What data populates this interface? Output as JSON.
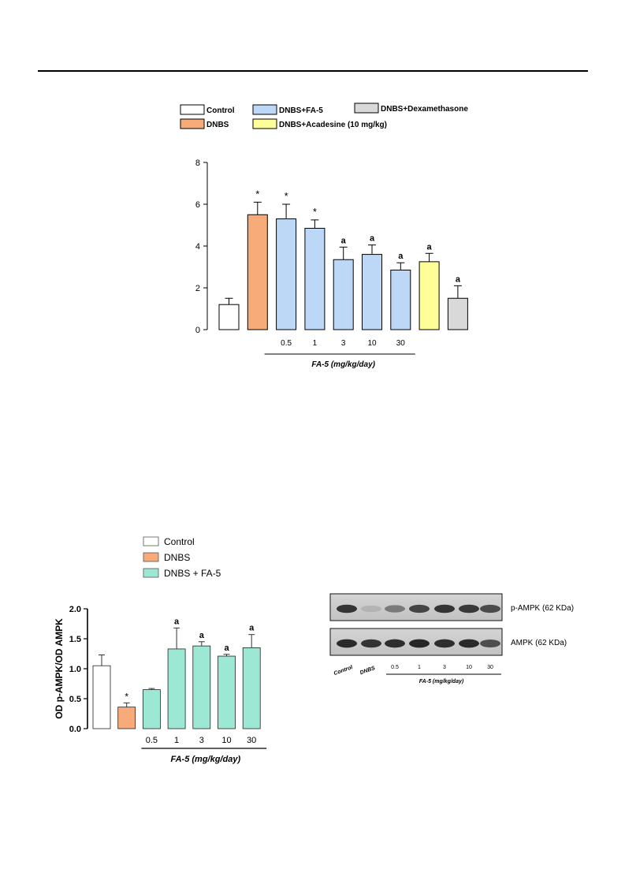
{
  "chart_data": [
    {
      "type": "bar",
      "ylim": [
        0,
        8
      ],
      "yticks": [
        "0",
        "2",
        "4",
        "6",
        "8"
      ],
      "bars": [
        {
          "value": 1.2,
          "error": 0.3,
          "color": "#ffffff",
          "mark": "",
          "label": ""
        },
        {
          "value": 5.5,
          "error": 0.6,
          "color": "#f6ab78",
          "mark": "*",
          "label": ""
        },
        {
          "value": 5.3,
          "error": 0.7,
          "color": "#bcd8f6",
          "mark": "*",
          "label": "0.5"
        },
        {
          "value": 4.85,
          "error": 0.4,
          "color": "#bcd8f6",
          "mark": "*",
          "label": "1"
        },
        {
          "value": 3.35,
          "error": 0.6,
          "color": "#bcd8f6",
          "mark": "a",
          "label": "3"
        },
        {
          "value": 3.6,
          "error": 0.45,
          "color": "#bcd8f6",
          "mark": "a",
          "label": "10"
        },
        {
          "value": 2.85,
          "error": 0.35,
          "color": "#bcd8f6",
          "mark": "a",
          "label": "30"
        },
        {
          "value": 3.25,
          "error": 0.4,
          "color": "#fefe99",
          "mark": "a",
          "label": ""
        },
        {
          "value": 1.5,
          "error": 0.6,
          "color": "#d9d9d9",
          "mark": "a",
          "label": ""
        }
      ],
      "group_label": "FA-5 (mg/kg/day)",
      "legend": [
        {
          "name": "Control",
          "color": "#ffffff"
        },
        {
          "name": "DNBS+FA-5",
          "color": "#bcd8f6"
        },
        {
          "name": "DNBS+Dexamethasone",
          "color": "#d9d9d9"
        },
        {
          "name": "DNBS",
          "color": "#f6ab78"
        },
        {
          "name": "DNBS+Acadesine (10 mg/kg)",
          "color": "#fefe99"
        }
      ]
    },
    {
      "type": "bar",
      "ylabel": "OD p-AMPK/OD AMPK",
      "ylim": [
        0,
        2
      ],
      "yticks": [
        "0.0",
        "0.5",
        "1.0",
        "1.5",
        "2.0"
      ],
      "bars": [
        {
          "value": 1.05,
          "error": 0.18,
          "color": "#ffffff",
          "mark": "",
          "label": ""
        },
        {
          "value": 0.36,
          "error": 0.07,
          "color": "#f6ab78",
          "mark": "*",
          "label": ""
        },
        {
          "value": 0.65,
          "error": 0.02,
          "color": "#9de8d4",
          "mark": "",
          "label": "0.5"
        },
        {
          "value": 1.33,
          "error": 0.35,
          "color": "#9de8d4",
          "mark": "a",
          "label": "1"
        },
        {
          "value": 1.38,
          "error": 0.07,
          "color": "#9de8d4",
          "mark": "a",
          "label": "3"
        },
        {
          "value": 1.21,
          "error": 0.03,
          "color": "#9de8d4",
          "mark": "a",
          "label": "10"
        },
        {
          "value": 1.35,
          "error": 0.22,
          "color": "#9de8d4",
          "mark": "a",
          "label": "30"
        }
      ],
      "group_label": "FA-5 (mg/kg/day)",
      "legend": [
        {
          "name": "Control",
          "color": "#ffffff"
        },
        {
          "name": "DNBS",
          "color": "#f6ab78"
        },
        {
          "name": "DNBS + FA-5",
          "color": "#9de8d4"
        }
      ]
    }
  ],
  "blot": {
    "rows": [
      {
        "label": "p-AMPK (62 KDa)",
        "intensities": [
          0.85,
          0.12,
          0.45,
          0.75,
          0.85,
          0.82,
          0.72
        ]
      },
      {
        "label": "AMPK (62 KDa)",
        "intensities": [
          0.9,
          0.85,
          0.88,
          0.92,
          0.88,
          0.9,
          0.7
        ]
      }
    ],
    "lane_labels_rotated": [
      "Control",
      "DNBS"
    ],
    "lane_labels": [
      "0.5",
      "1",
      "3",
      "10",
      "30"
    ],
    "group_label": "FA-5 (mg/kg/day)"
  }
}
